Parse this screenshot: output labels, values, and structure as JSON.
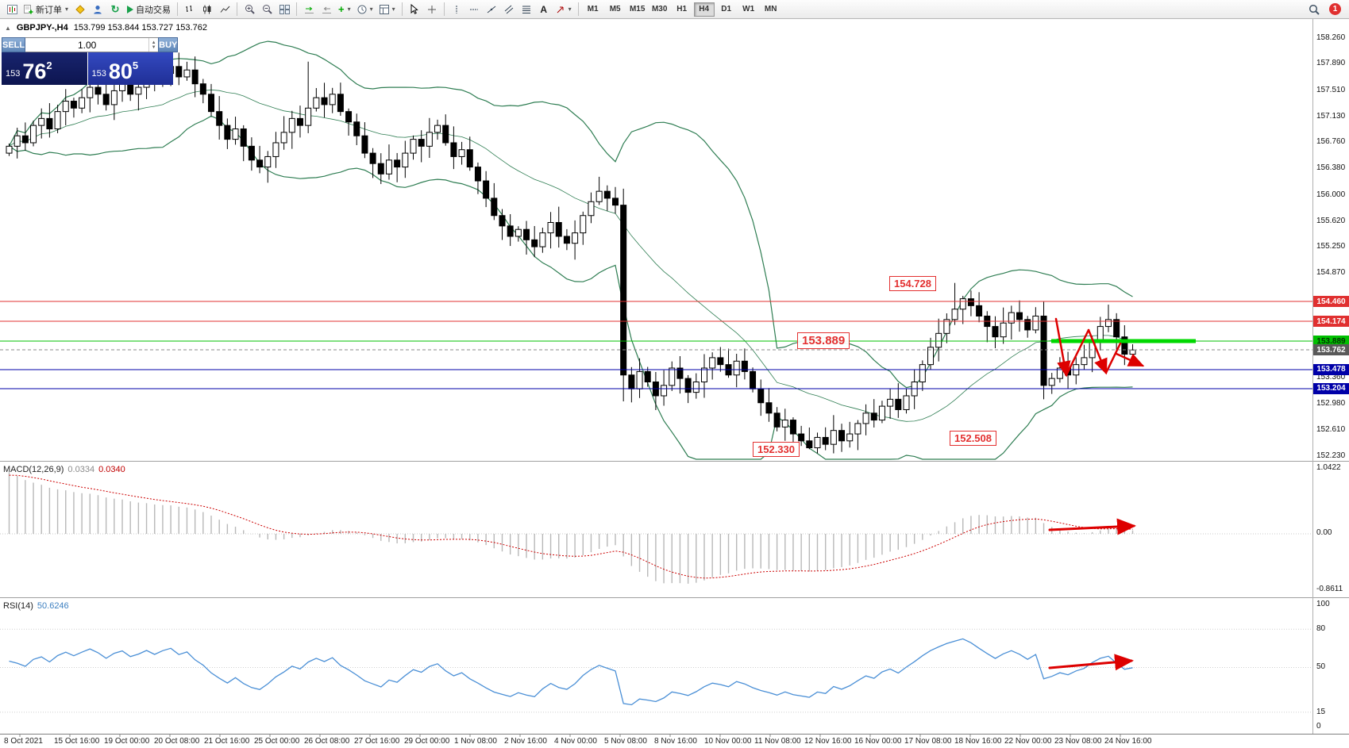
{
  "toolbar": {
    "new_order_label": "新订单",
    "auto_trading_label": "自动交易",
    "timeframes": [
      "M1",
      "M5",
      "M15",
      "M30",
      "H1",
      "H4",
      "D1",
      "W1",
      "MN"
    ],
    "active_timeframe": "H4",
    "notification_count": "1"
  },
  "chart": {
    "title": "GBPJPY-,H4",
    "ohlc": "153.799 153.844 153.727 153.762"
  },
  "one_click": {
    "sell_label": "SELL",
    "buy_label": "BUY",
    "volume": "1.00",
    "sell_price": {
      "prefix": "153",
      "main": "76",
      "sup": "2"
    },
    "buy_price": {
      "prefix": "153",
      "main": "80",
      "sup": "5"
    }
  },
  "chart_data": {
    "type": "candlestick",
    "symbol": "GBPJPY-",
    "timeframe": "H4",
    "ylim": [
      152.23,
      158.26
    ],
    "price_ticks": [
      "158.260",
      "157.890",
      "157.510",
      "157.130",
      "156.760",
      "156.380",
      "156.000",
      "155.620",
      "155.250",
      "154.870",
      "153.360",
      "152.980",
      "152.610",
      "152.230"
    ],
    "levels": [
      {
        "price": 154.46,
        "label": "154.460",
        "color": "#e03030",
        "kind": "resistance"
      },
      {
        "price": 154.174,
        "label": "154.174",
        "color": "#e03030",
        "kind": "resistance"
      },
      {
        "price": 153.889,
        "label": "153.889",
        "color": "#00c000",
        "kind": "pivot"
      },
      {
        "price": 153.762,
        "label": "153.762",
        "color": "#595959",
        "kind": "current"
      },
      {
        "price": 153.478,
        "label": "153.478",
        "color": "#0000a8",
        "kind": "support"
      },
      {
        "price": 153.204,
        "label": "153.204",
        "color": "#0000a8",
        "kind": "support"
      }
    ],
    "bold_green_segment": {
      "price": 153.889
    },
    "open_first": 156.6,
    "closes": [
      156.7,
      156.85,
      156.75,
      157.0,
      157.1,
      156.95,
      157.2,
      157.35,
      157.25,
      157.4,
      157.55,
      157.45,
      157.3,
      157.5,
      157.6,
      157.45,
      157.55,
      157.7,
      157.6,
      157.75,
      157.85,
      157.7,
      157.8,
      157.6,
      157.45,
      157.2,
      157.0,
      156.8,
      156.95,
      156.7,
      156.5,
      156.4,
      156.55,
      156.75,
      156.9,
      157.1,
      157.0,
      157.25,
      157.4,
      157.3,
      157.45,
      157.2,
      157.05,
      156.85,
      156.6,
      156.45,
      156.3,
      156.5,
      156.4,
      156.6,
      156.8,
      156.7,
      156.9,
      157.0,
      156.75,
      156.55,
      156.65,
      156.4,
      156.2,
      155.95,
      155.7,
      155.55,
      155.4,
      155.5,
      155.35,
      155.25,
      155.45,
      155.6,
      155.4,
      155.3,
      155.45,
      155.7,
      155.9,
      156.05,
      155.95,
      155.85,
      153.4,
      153.2,
      153.45,
      153.3,
      153.1,
      153.25,
      153.5,
      153.35,
      153.15,
      153.3,
      153.5,
      153.65,
      153.55,
      153.4,
      153.6,
      153.45,
      153.2,
      153.0,
      152.85,
      152.65,
      152.75,
      152.55,
      152.45,
      152.35,
      152.5,
      152.4,
      152.6,
      152.45,
      152.55,
      152.7,
      152.85,
      152.75,
      152.95,
      153.05,
      152.9,
      153.1,
      153.3,
      153.55,
      153.8,
      154.0,
      154.2,
      154.35,
      154.5,
      154.4,
      154.25,
      154.1,
      153.95,
      154.15,
      154.3,
      154.2,
      154.05,
      154.25,
      153.25,
      153.35,
      153.5,
      153.4,
      153.55,
      153.65,
      153.9,
      154.1,
      154.2,
      153.95,
      153.7,
      153.762
    ],
    "extremes": {
      "21": {
        "high": 158.05
      },
      "37": {
        "high": 157.92
      },
      "76": {
        "low": 153.02
      },
      "99": {
        "low": 152.33
      },
      "117": {
        "high": 154.728
      },
      "128": {
        "low": 153.05
      },
      "139": {
        "high": 153.844,
        "low": 153.727
      }
    },
    "indicators": {
      "bollinger": {
        "period": 20,
        "deviation": 2
      },
      "macd": {
        "label": "MACD(12,26,9)",
        "value": "0.0334",
        "signal": "0.0340",
        "scale_max": "1.0422",
        "scale_zero": "0.00",
        "scale_min": "-0.8611"
      },
      "rsi": {
        "label": "RSI(14)",
        "value": "50.6246",
        "scale": [
          "100",
          "80",
          "50",
          "15",
          "0"
        ],
        "levels": [
          80,
          50,
          15
        ]
      }
    },
    "annotations": [
      {
        "text": "154.728"
      },
      {
        "text": "153.889"
      },
      {
        "text": "152.330"
      },
      {
        "text": "152.508"
      }
    ],
    "time_labels": [
      "8 Oct 2021",
      "15 Oct 16:00",
      "19 Oct 00:00",
      "20 Oct 08:00",
      "21 Oct 16:00",
      "25 Oct 00:00",
      "26 Oct 08:00",
      "27 Oct 16:00",
      "29 Oct 00:00",
      "1 Nov 08:00",
      "2 Nov 16:00",
      "4 Nov 00:00",
      "5 Nov 08:00",
      "8 Nov 16:00",
      "10 Nov 00:00",
      "11 Nov 08:00",
      "12 Nov 16:00",
      "16 Nov 00:00",
      "17 Nov 08:00",
      "18 Nov 16:00",
      "22 Nov 00:00",
      "23 Nov 08:00",
      "24 Nov 16:00"
    ]
  }
}
